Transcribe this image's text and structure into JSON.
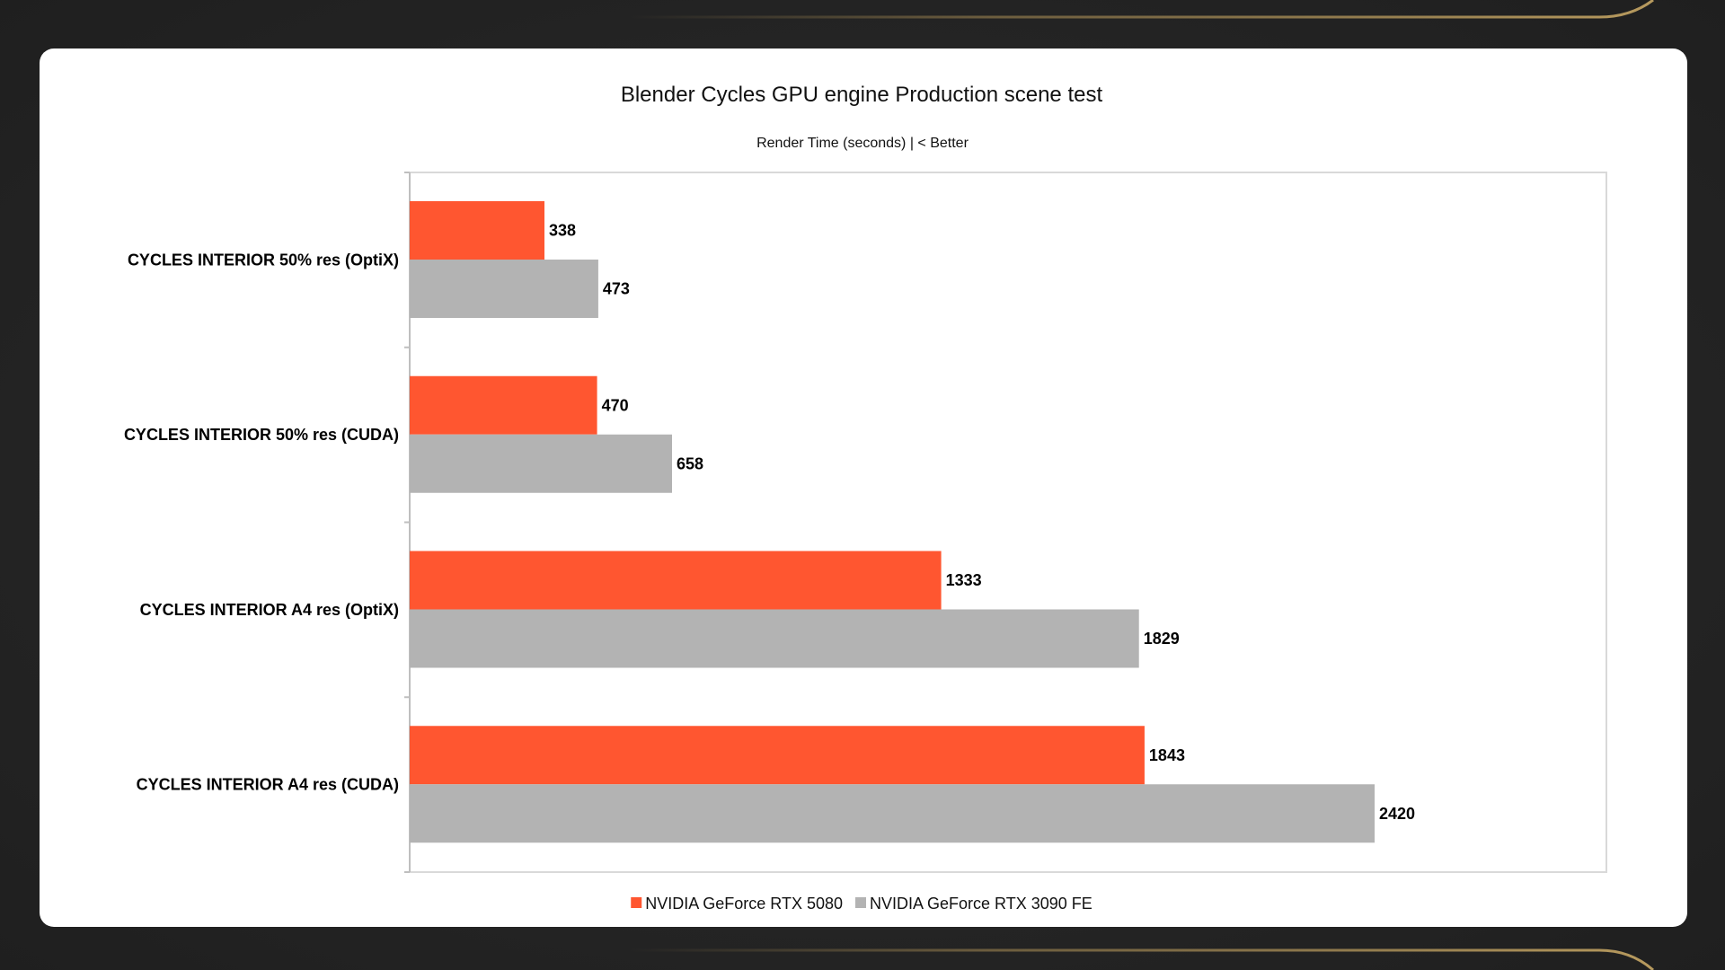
{
  "chart_data": {
    "type": "bar",
    "orientation": "horizontal",
    "title": "Blender Cycles GPU engine Production scene test",
    "subtitle": "Render Time (seconds) | < Better",
    "categories": [
      "CYCLES INTERIOR 50% res (OptiX)",
      "CYCLES INTERIOR 50% res (CUDA)",
      "CYCLES INTERIOR A4 res (OptiX)",
      "CYCLES INTERIOR A4 res (CUDA)"
    ],
    "series": [
      {
        "name": "NVIDIA GeForce RTX 5080",
        "color": "#FF5630",
        "values": [
          338,
          470,
          1333,
          1843
        ]
      },
      {
        "name": "NVIDIA GeForce RTX 3090 FE",
        "color": "#B3B3B3",
        "values": [
          473,
          658,
          1829,
          2420
        ]
      }
    ],
    "xlim": [
      0,
      3000
    ],
    "grid": false,
    "legend_position": "bottom-center",
    "data_labels": true
  },
  "colors": {
    "page_background": "#262626",
    "card_background": "#FFFFFF",
    "accent_line": "#9C8350"
  }
}
